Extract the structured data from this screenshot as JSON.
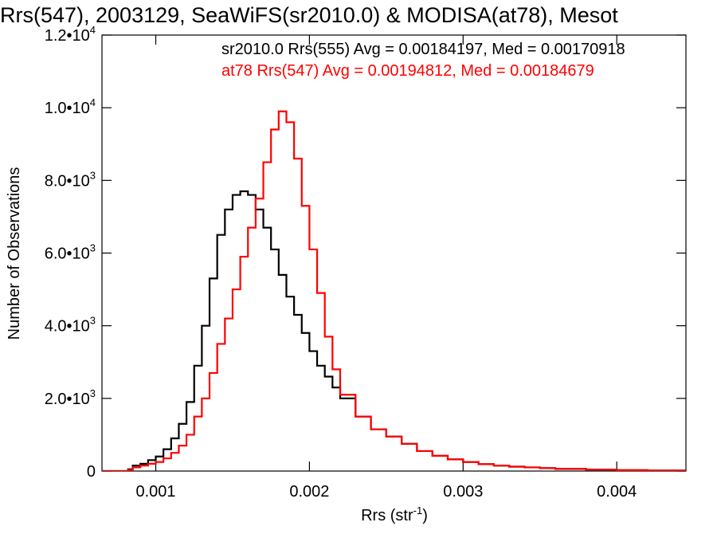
{
  "chart_data": {
    "type": "line",
    "title": "Rrs(547), 2003129, SeaWiFS(sr2010.0) & MODISA(at78), Mesot",
    "xlabel": "Rrs (str",
    "xlabel_sup": "-1",
    "xlabel_close": ")",
    "ylabel": "Number of Observations",
    "xlim": [
      0.00065,
      0.00445
    ],
    "ylim": [
      0,
      12000
    ],
    "x_ticks": [
      {
        "value": 0.001,
        "label": "0.001"
      },
      {
        "value": 0.002,
        "label": "0.002"
      },
      {
        "value": 0.003,
        "label": "0.003"
      },
      {
        "value": 0.004,
        "label": "0.004"
      }
    ],
    "y_ticks": [
      {
        "value": 0,
        "label": "0",
        "exp": ""
      },
      {
        "value": 2000,
        "label": "2.0•10",
        "exp": "3"
      },
      {
        "value": 4000,
        "label": "4.0•10",
        "exp": "3"
      },
      {
        "value": 6000,
        "label": "6.0•10",
        "exp": "3"
      },
      {
        "value": 8000,
        "label": "8.0•10",
        "exp": "3"
      },
      {
        "value": 10000,
        "label": "1.0•10",
        "exp": "4"
      },
      {
        "value": 12000,
        "label": "1.2•10",
        "exp": "4"
      }
    ],
    "grid": false,
    "legend": "top-right",
    "annotations": [
      {
        "text": "sr2010.0 Rrs(555) Avg = 0.00184197, Med = 0.00170918",
        "color": "#000000"
      },
      {
        "text": "at78 Rrs(547) Avg = 0.00194812, Med = 0.00184679",
        "color": "#ff0000"
      }
    ],
    "series": [
      {
        "color": "#000000",
        "x": [
          0.00065,
          0.0008,
          0.00082,
          0.00085,
          0.0009,
          0.00095,
          0.001,
          0.00105,
          0.0011,
          0.00115,
          0.0012,
          0.00125,
          0.0013,
          0.00135,
          0.0014,
          0.00145,
          0.0015,
          0.00155,
          0.0016,
          0.00165,
          0.0017,
          0.00175,
          0.0018,
          0.00185,
          0.0019,
          0.00195,
          0.002,
          0.00205,
          0.0021,
          0.00215,
          0.0022,
          0.0023,
          0.0024,
          0.0025,
          0.0026,
          0.0027,
          0.0028,
          0.0029,
          0.003,
          0.0031,
          0.0032,
          0.0033,
          0.0034,
          0.0035,
          0.0036,
          0.0038,
          0.004,
          0.0042,
          0.00445
        ],
        "values": [
          0,
          0,
          50,
          150,
          200,
          300,
          400,
          600,
          900,
          1300,
          1900,
          2900,
          4000,
          5300,
          6500,
          7200,
          7600,
          7700,
          7600,
          7200,
          6700,
          6100,
          5400,
          4800,
          4300,
          3800,
          3300,
          2900,
          2600,
          2300,
          2000,
          1500,
          1150,
          950,
          750,
          550,
          420,
          320,
          250,
          190,
          150,
          120,
          100,
          80,
          60,
          40,
          25,
          15,
          10
        ]
      },
      {
        "color": "#ff0000",
        "x": [
          0.00065,
          0.0008,
          0.00082,
          0.00085,
          0.0009,
          0.00095,
          0.001,
          0.00105,
          0.0011,
          0.00115,
          0.0012,
          0.00125,
          0.0013,
          0.00135,
          0.0014,
          0.00145,
          0.0015,
          0.00155,
          0.0016,
          0.00165,
          0.0017,
          0.00175,
          0.0018,
          0.00185,
          0.0019,
          0.00195,
          0.002,
          0.00205,
          0.0021,
          0.00215,
          0.0022,
          0.0023,
          0.0024,
          0.0025,
          0.0026,
          0.0027,
          0.0028,
          0.0029,
          0.003,
          0.0031,
          0.0032,
          0.0033,
          0.0034,
          0.0035,
          0.0036,
          0.0038,
          0.004,
          0.0042,
          0.00445
        ],
        "values": [
          0,
          0,
          30,
          100,
          150,
          200,
          250,
          350,
          500,
          700,
          1000,
          1500,
          2000,
          2700,
          3500,
          4200,
          5000,
          5900,
          6700,
          7500,
          8500,
          9400,
          9900,
          9600,
          8600,
          7300,
          6100,
          4900,
          3700,
          2800,
          2100,
          1500,
          1150,
          950,
          750,
          550,
          420,
          320,
          250,
          190,
          150,
          120,
          100,
          80,
          60,
          40,
          25,
          15,
          10
        ]
      }
    ]
  }
}
